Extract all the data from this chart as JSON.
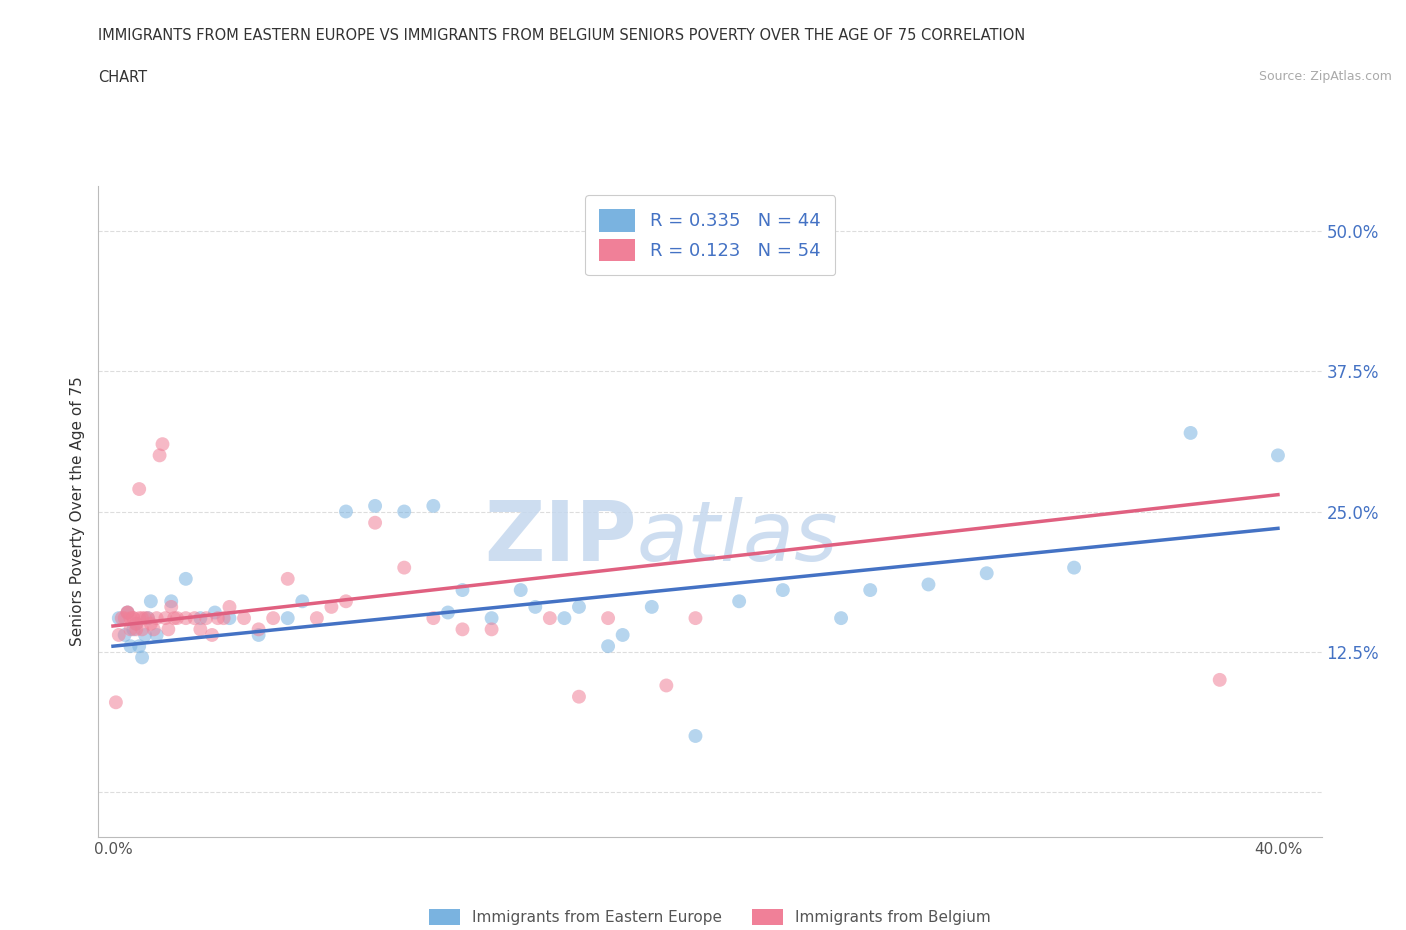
{
  "title_line1": "IMMIGRANTS FROM EASTERN EUROPE VS IMMIGRANTS FROM BELGIUM SENIORS POVERTY OVER THE AGE OF 75 CORRELATION",
  "title_line2": "CHART",
  "source": "Source: ZipAtlas.com",
  "ylabel": "Seniors Poverty Over the Age of 75",
  "xlim": [
    -0.005,
    0.415
  ],
  "ylim": [
    -0.04,
    0.54
  ],
  "x_tick_positions": [
    0.0,
    0.1,
    0.2,
    0.3,
    0.4
  ],
  "x_tick_labels": [
    "0.0%",
    "",
    "",
    "",
    "40.0%"
  ],
  "y_tick_positions": [
    0.0,
    0.125,
    0.25,
    0.375,
    0.5
  ],
  "y_tick_labels": [
    "",
    "12.5%",
    "25.0%",
    "37.5%",
    "50.0%"
  ],
  "legend_entries": [
    {
      "label": "R = 0.335   N = 44",
      "color": "#a8c8f0"
    },
    {
      "label": "R = 0.123   N = 54",
      "color": "#f5a0b0"
    }
  ],
  "legend_bottom": [
    {
      "label": "Immigrants from Eastern Europe",
      "color": "#a8c8f0"
    },
    {
      "label": "Immigrants from Belgium",
      "color": "#f5a0b0"
    }
  ],
  "blue_scatter_x": [
    0.002,
    0.004,
    0.005,
    0.006,
    0.007,
    0.008,
    0.009,
    0.01,
    0.011,
    0.012,
    0.013,
    0.015,
    0.02,
    0.025,
    0.03,
    0.035,
    0.04,
    0.05,
    0.06,
    0.065,
    0.08,
    0.09,
    0.1,
    0.11,
    0.115,
    0.12,
    0.14,
    0.155,
    0.16,
    0.17,
    0.175,
    0.185,
    0.2,
    0.215,
    0.23,
    0.25,
    0.26,
    0.3,
    0.33,
    0.37,
    0.4,
    0.13,
    0.145,
    0.28
  ],
  "blue_scatter_y": [
    0.155,
    0.14,
    0.16,
    0.13,
    0.145,
    0.15,
    0.13,
    0.12,
    0.14,
    0.155,
    0.17,
    0.14,
    0.17,
    0.19,
    0.155,
    0.16,
    0.155,
    0.14,
    0.155,
    0.17,
    0.25,
    0.255,
    0.25,
    0.255,
    0.16,
    0.18,
    0.18,
    0.155,
    0.165,
    0.13,
    0.14,
    0.165,
    0.05,
    0.17,
    0.18,
    0.155,
    0.18,
    0.195,
    0.2,
    0.32,
    0.3,
    0.155,
    0.165,
    0.185
  ],
  "pink_scatter_x": [
    0.001,
    0.002,
    0.003,
    0.004,
    0.005,
    0.005,
    0.006,
    0.006,
    0.007,
    0.007,
    0.008,
    0.008,
    0.009,
    0.009,
    0.01,
    0.01,
    0.011,
    0.012,
    0.013,
    0.014,
    0.015,
    0.016,
    0.017,
    0.018,
    0.019,
    0.02,
    0.021,
    0.022,
    0.025,
    0.028,
    0.03,
    0.032,
    0.034,
    0.036,
    0.038,
    0.04,
    0.045,
    0.05,
    0.055,
    0.06,
    0.07,
    0.075,
    0.08,
    0.09,
    0.1,
    0.11,
    0.12,
    0.13,
    0.15,
    0.16,
    0.17,
    0.19,
    0.2,
    0.38
  ],
  "pink_scatter_y": [
    0.08,
    0.14,
    0.155,
    0.155,
    0.16,
    0.16,
    0.145,
    0.155,
    0.155,
    0.155,
    0.145,
    0.15,
    0.155,
    0.27,
    0.145,
    0.155,
    0.155,
    0.155,
    0.15,
    0.145,
    0.155,
    0.3,
    0.31,
    0.155,
    0.145,
    0.165,
    0.155,
    0.155,
    0.155,
    0.155,
    0.145,
    0.155,
    0.14,
    0.155,
    0.155,
    0.165,
    0.155,
    0.145,
    0.155,
    0.19,
    0.155,
    0.165,
    0.17,
    0.24,
    0.2,
    0.155,
    0.145,
    0.145,
    0.155,
    0.085,
    0.155,
    0.095,
    0.155,
    0.1
  ],
  "blue_line_x": [
    0.0,
    0.4
  ],
  "blue_line_y": [
    0.13,
    0.235
  ],
  "pink_line_x": [
    0.0,
    0.4
  ],
  "pink_line_y": [
    0.148,
    0.265
  ],
  "watermark_zip": "ZIP",
  "watermark_atlas": "atlas",
  "scatter_size": 100,
  "scatter_alpha": 0.55,
  "blue_color": "#7ab3e0",
  "pink_color": "#f08098",
  "blue_line_color": "#4472c4",
  "pink_line_color": "#e06080",
  "grid_color": "#dddddd",
  "background_color": "#ffffff"
}
